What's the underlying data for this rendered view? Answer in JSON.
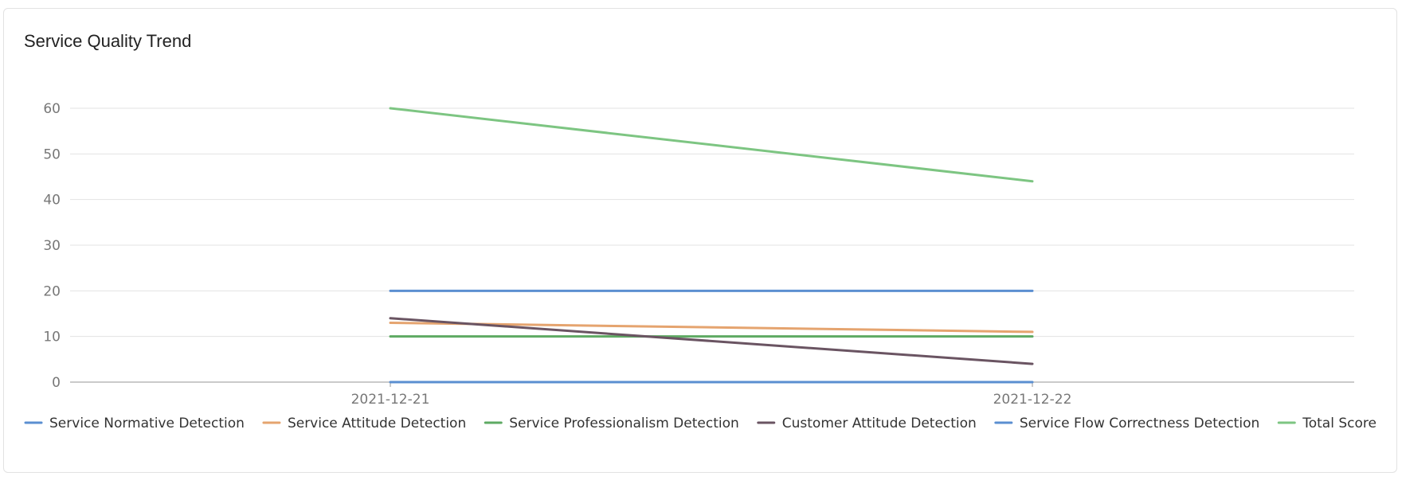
{
  "card": {
    "title": "Service Quality Trend"
  },
  "chart_data": {
    "type": "line",
    "title": "Service Quality Trend",
    "x": [
      "2021-12-21",
      "2021-12-22"
    ],
    "ylim": [
      0,
      60
    ],
    "yticks": [
      0,
      10,
      20,
      30,
      40,
      50,
      60
    ],
    "grid": true,
    "legend_position": "bottom",
    "series": [
      {
        "name": "Service Normative Detection",
        "values": [
          0,
          0
        ],
        "color": "#5b8fd1"
      },
      {
        "name": "Service Attitude Detection",
        "values": [
          13,
          11
        ],
        "color": "#e5a46f"
      },
      {
        "name": "Service Professionalism Detection",
        "values": [
          10,
          10
        ],
        "color": "#5eaa63"
      },
      {
        "name": "Customer Attitude Detection",
        "values": [
          14,
          4
        ],
        "color": "#6a5462"
      },
      {
        "name": "Service Flow Correctness Detection",
        "values": [
          20,
          20
        ],
        "color": "#5b8fd1"
      },
      {
        "name": "Total Score",
        "values": [
          60,
          44
        ],
        "color": "#7dc582"
      }
    ]
  }
}
